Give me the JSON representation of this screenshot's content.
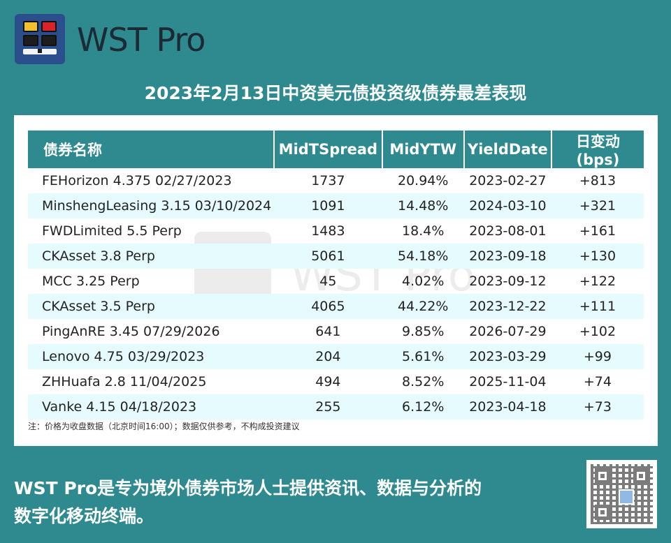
{
  "brand": {
    "name": "WST Pro"
  },
  "title": "2023年2月13日中资美元债投资级债券最差表现",
  "table": {
    "headers": [
      "债券名称",
      "MidTSpread",
      "MidYTW",
      "YieldDate",
      "日变动(bps)"
    ],
    "rows": [
      [
        "FEHorizon 4.375 02/27/2023",
        "1737",
        "20.94%",
        "2023-02-27",
        "+813"
      ],
      [
        "MinshengLeasing 3.15 03/10/2024",
        "1091",
        "14.48%",
        "2024-03-10",
        "+321"
      ],
      [
        "FWDLimited 5.5 Perp",
        "1483",
        "18.4%",
        "2023-08-01",
        "+161"
      ],
      [
        "CKAsset 3.8 Perp",
        "5061",
        "54.18%",
        "2023-09-18",
        "+130"
      ],
      [
        "MCC 3.25 Perp",
        "45",
        "4.02%",
        "2023-09-12",
        "+122"
      ],
      [
        "CKAsset 3.5 Perp",
        "4065",
        "44.22%",
        "2023-12-22",
        "+111"
      ],
      [
        "PingAnRE 3.45 07/29/2026",
        "641",
        "9.85%",
        "2026-07-29",
        "+102"
      ],
      [
        "Lenovo 4.75 03/29/2023",
        "204",
        "5.61%",
        "2023-03-29",
        "+99"
      ],
      [
        "ZHHuafa 2.8 11/04/2025",
        "494",
        "8.52%",
        "2025-11-04",
        "+74"
      ],
      [
        "Vanke 4.15 04/18/2023",
        "255",
        "6.12%",
        "2023-04-18",
        "+73"
      ]
    ]
  },
  "note": "注：价格为收盘数据（北京时间16:00）；数据仅供参考，不构成投资建议",
  "watermark": "WST Pro",
  "footer": {
    "line1": "WST Pro是专为境外债券市场人士提供资讯、数据与分析的",
    "line2": "数字化移动终端。"
  },
  "colors": {
    "background": "#2e8a8e",
    "header": "#2e8a8e",
    "row_alt": "#e6fbfd",
    "logo_bg": "#2b4f8c"
  },
  "icons": {
    "logo": "wst-logo-icon",
    "qr": "qr-code-icon"
  }
}
